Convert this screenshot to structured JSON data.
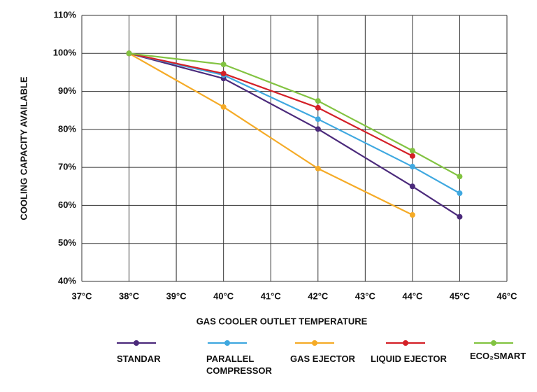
{
  "chart_data": {
    "type": "line",
    "y_label": "COOLING CAPACITY AVAILABLE",
    "x_label": "GAS COOLER OUTLET TEMPERATURE",
    "x": [
      38,
      40,
      42,
      44,
      45
    ],
    "series": [
      {
        "name": "STANDAR",
        "color": "#4b2a7b",
        "values": [
          100,
          93.4,
          80.1,
          65,
          57
        ]
      },
      {
        "name": "PARALLEL COMPRESSOR",
        "color": "#3fa8e0",
        "values": [
          100,
          94.3,
          82.7,
          70.2,
          63.2
        ]
      },
      {
        "name": "GAS EJECTOR",
        "color": "#f5ab27",
        "values": [
          100,
          85.9,
          69.7,
          57.5,
          null
        ]
      },
      {
        "name": "LIQUID EJECTOR",
        "color": "#d42027",
        "values": [
          100,
          94.7,
          85.7,
          73,
          null
        ]
      },
      {
        "name": "ECO₂SMART",
        "color": "#82c341",
        "values": [
          100,
          97.1,
          87.5,
          74.4,
          67.6
        ]
      }
    ],
    "xlim": [
      37,
      46
    ],
    "xticks": [
      {
        "value": 37,
        "label": "37°C"
      },
      {
        "value": 38,
        "label": "38°C"
      },
      {
        "value": 39,
        "label": "39°C"
      },
      {
        "value": 40,
        "label": "40°C"
      },
      {
        "value": 41,
        "label": "41°C"
      },
      {
        "value": 42,
        "label": "42°C"
      },
      {
        "value": 43,
        "label": "43°C"
      },
      {
        "value": 44,
        "label": "44°C"
      },
      {
        "value": 45,
        "label": "45°C"
      },
      {
        "value": 46,
        "label": "46°C"
      }
    ],
    "ylim": [
      40,
      110
    ],
    "yticks": [
      {
        "value": 40,
        "label": "40%"
      },
      {
        "value": 50,
        "label": "50%"
      },
      {
        "value": 60,
        "label": "60%"
      },
      {
        "value": 70,
        "label": "70%"
      },
      {
        "value": 80,
        "label": "80%"
      },
      {
        "value": 90,
        "label": "90%"
      },
      {
        "value": 100,
        "label": "100%"
      },
      {
        "value": 110,
        "label": "110%"
      }
    ],
    "grid": true
  }
}
